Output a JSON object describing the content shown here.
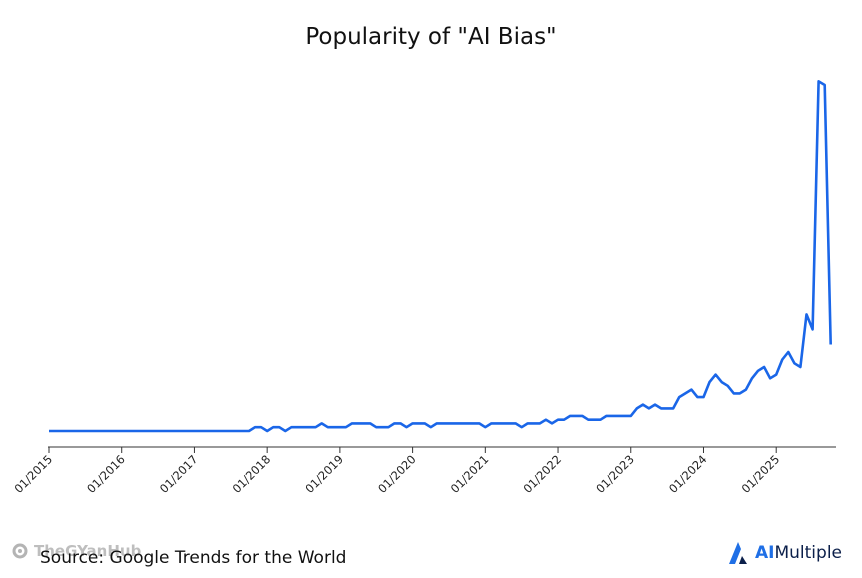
{
  "colors": {
    "line": "#1a66e8",
    "axis": "#333333",
    "brand": "#1f6fe6",
    "brand_dark": "#0b1f4a"
  },
  "watermark": {
    "text": "TheGYanHub"
  },
  "source": "Source: Google Trends for the World",
  "brand": {
    "ai": "AI",
    "rest": "Multiple",
    "icon": "aimultiple-logo-icon"
  },
  "chart_data": {
    "type": "line",
    "title": "Popularity of \"AI Bias\"",
    "xlabel": "",
    "ylabel": "",
    "grid": false,
    "legend": "none",
    "x_tick_labels": [
      "01/2015",
      "01/2016",
      "01/2017",
      "01/2018",
      "01/2019",
      "01/2020",
      "01/2021",
      "01/2022",
      "01/2023",
      "01/2024",
      "01/2025"
    ],
    "x_start": "01/2015",
    "months_per_point": 1,
    "ylim": [
      0,
      100
    ],
    "series": [
      {
        "name": "AI Bias",
        "values": [
          4,
          4,
          4,
          4,
          4,
          4,
          4,
          4,
          4,
          4,
          4,
          4,
          4,
          4,
          4,
          4,
          4,
          4,
          4,
          4,
          4,
          4,
          4,
          4,
          4,
          4,
          4,
          4,
          4,
          4,
          4,
          4,
          4,
          4,
          5,
          5,
          4,
          5,
          5,
          4,
          5,
          5,
          5,
          5,
          5,
          6,
          5,
          5,
          5,
          5,
          6,
          6,
          6,
          6,
          5,
          5,
          5,
          6,
          6,
          5,
          6,
          6,
          6,
          5,
          6,
          6,
          6,
          6,
          6,
          6,
          6,
          6,
          5,
          6,
          6,
          6,
          6,
          6,
          5,
          6,
          6,
          6,
          7,
          6,
          7,
          7,
          8,
          8,
          8,
          7,
          7,
          7,
          8,
          8,
          8,
          8,
          8,
          10,
          11,
          10,
          11,
          10,
          10,
          10,
          13,
          14,
          15,
          13,
          13,
          17,
          19,
          17,
          16,
          14,
          14,
          15,
          18,
          20,
          21,
          18,
          19,
          23,
          25,
          22,
          21,
          35,
          31,
          97,
          96,
          27
        ]
      }
    ]
  }
}
